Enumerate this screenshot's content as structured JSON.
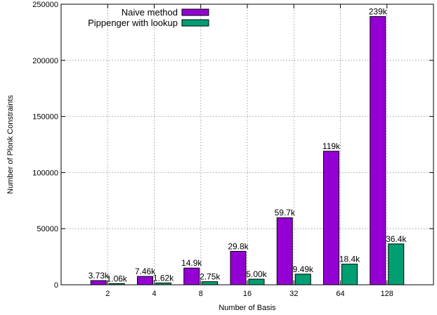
{
  "chart_data": {
    "type": "bar",
    "xlabel": "Number of Basis",
    "ylabel": "Number of Plonk Constraints",
    "categories": [
      "2",
      "4",
      "8",
      "16",
      "32",
      "64",
      "128"
    ],
    "ylim": [
      0,
      250000
    ],
    "yticks": [
      0,
      50000,
      100000,
      150000,
      200000,
      250000
    ],
    "ytick_labels": [
      "0",
      "50000",
      "100000",
      "150000",
      "200000",
      "250000"
    ],
    "grid": true,
    "legend_position": "top-left",
    "series": [
      {
        "name": "Naive method",
        "color": "#9400d3",
        "values": [
          3730,
          7460,
          14900,
          29800,
          59700,
          119000,
          239000
        ],
        "labels": [
          "3.73k",
          "7.46k",
          "14.9k",
          "29.8k",
          "59.7k",
          "119k",
          "239k"
        ]
      },
      {
        "name": "Pippenger with lookup",
        "color": "#009e73",
        "values": [
          1060,
          1620,
          2750,
          5000,
          9490,
          18400,
          36400
        ],
        "labels": [
          "1.06k",
          "1.62k",
          "2.75k",
          "5.00k",
          "9.49k",
          "18.4k",
          "36.4k"
        ]
      }
    ]
  }
}
